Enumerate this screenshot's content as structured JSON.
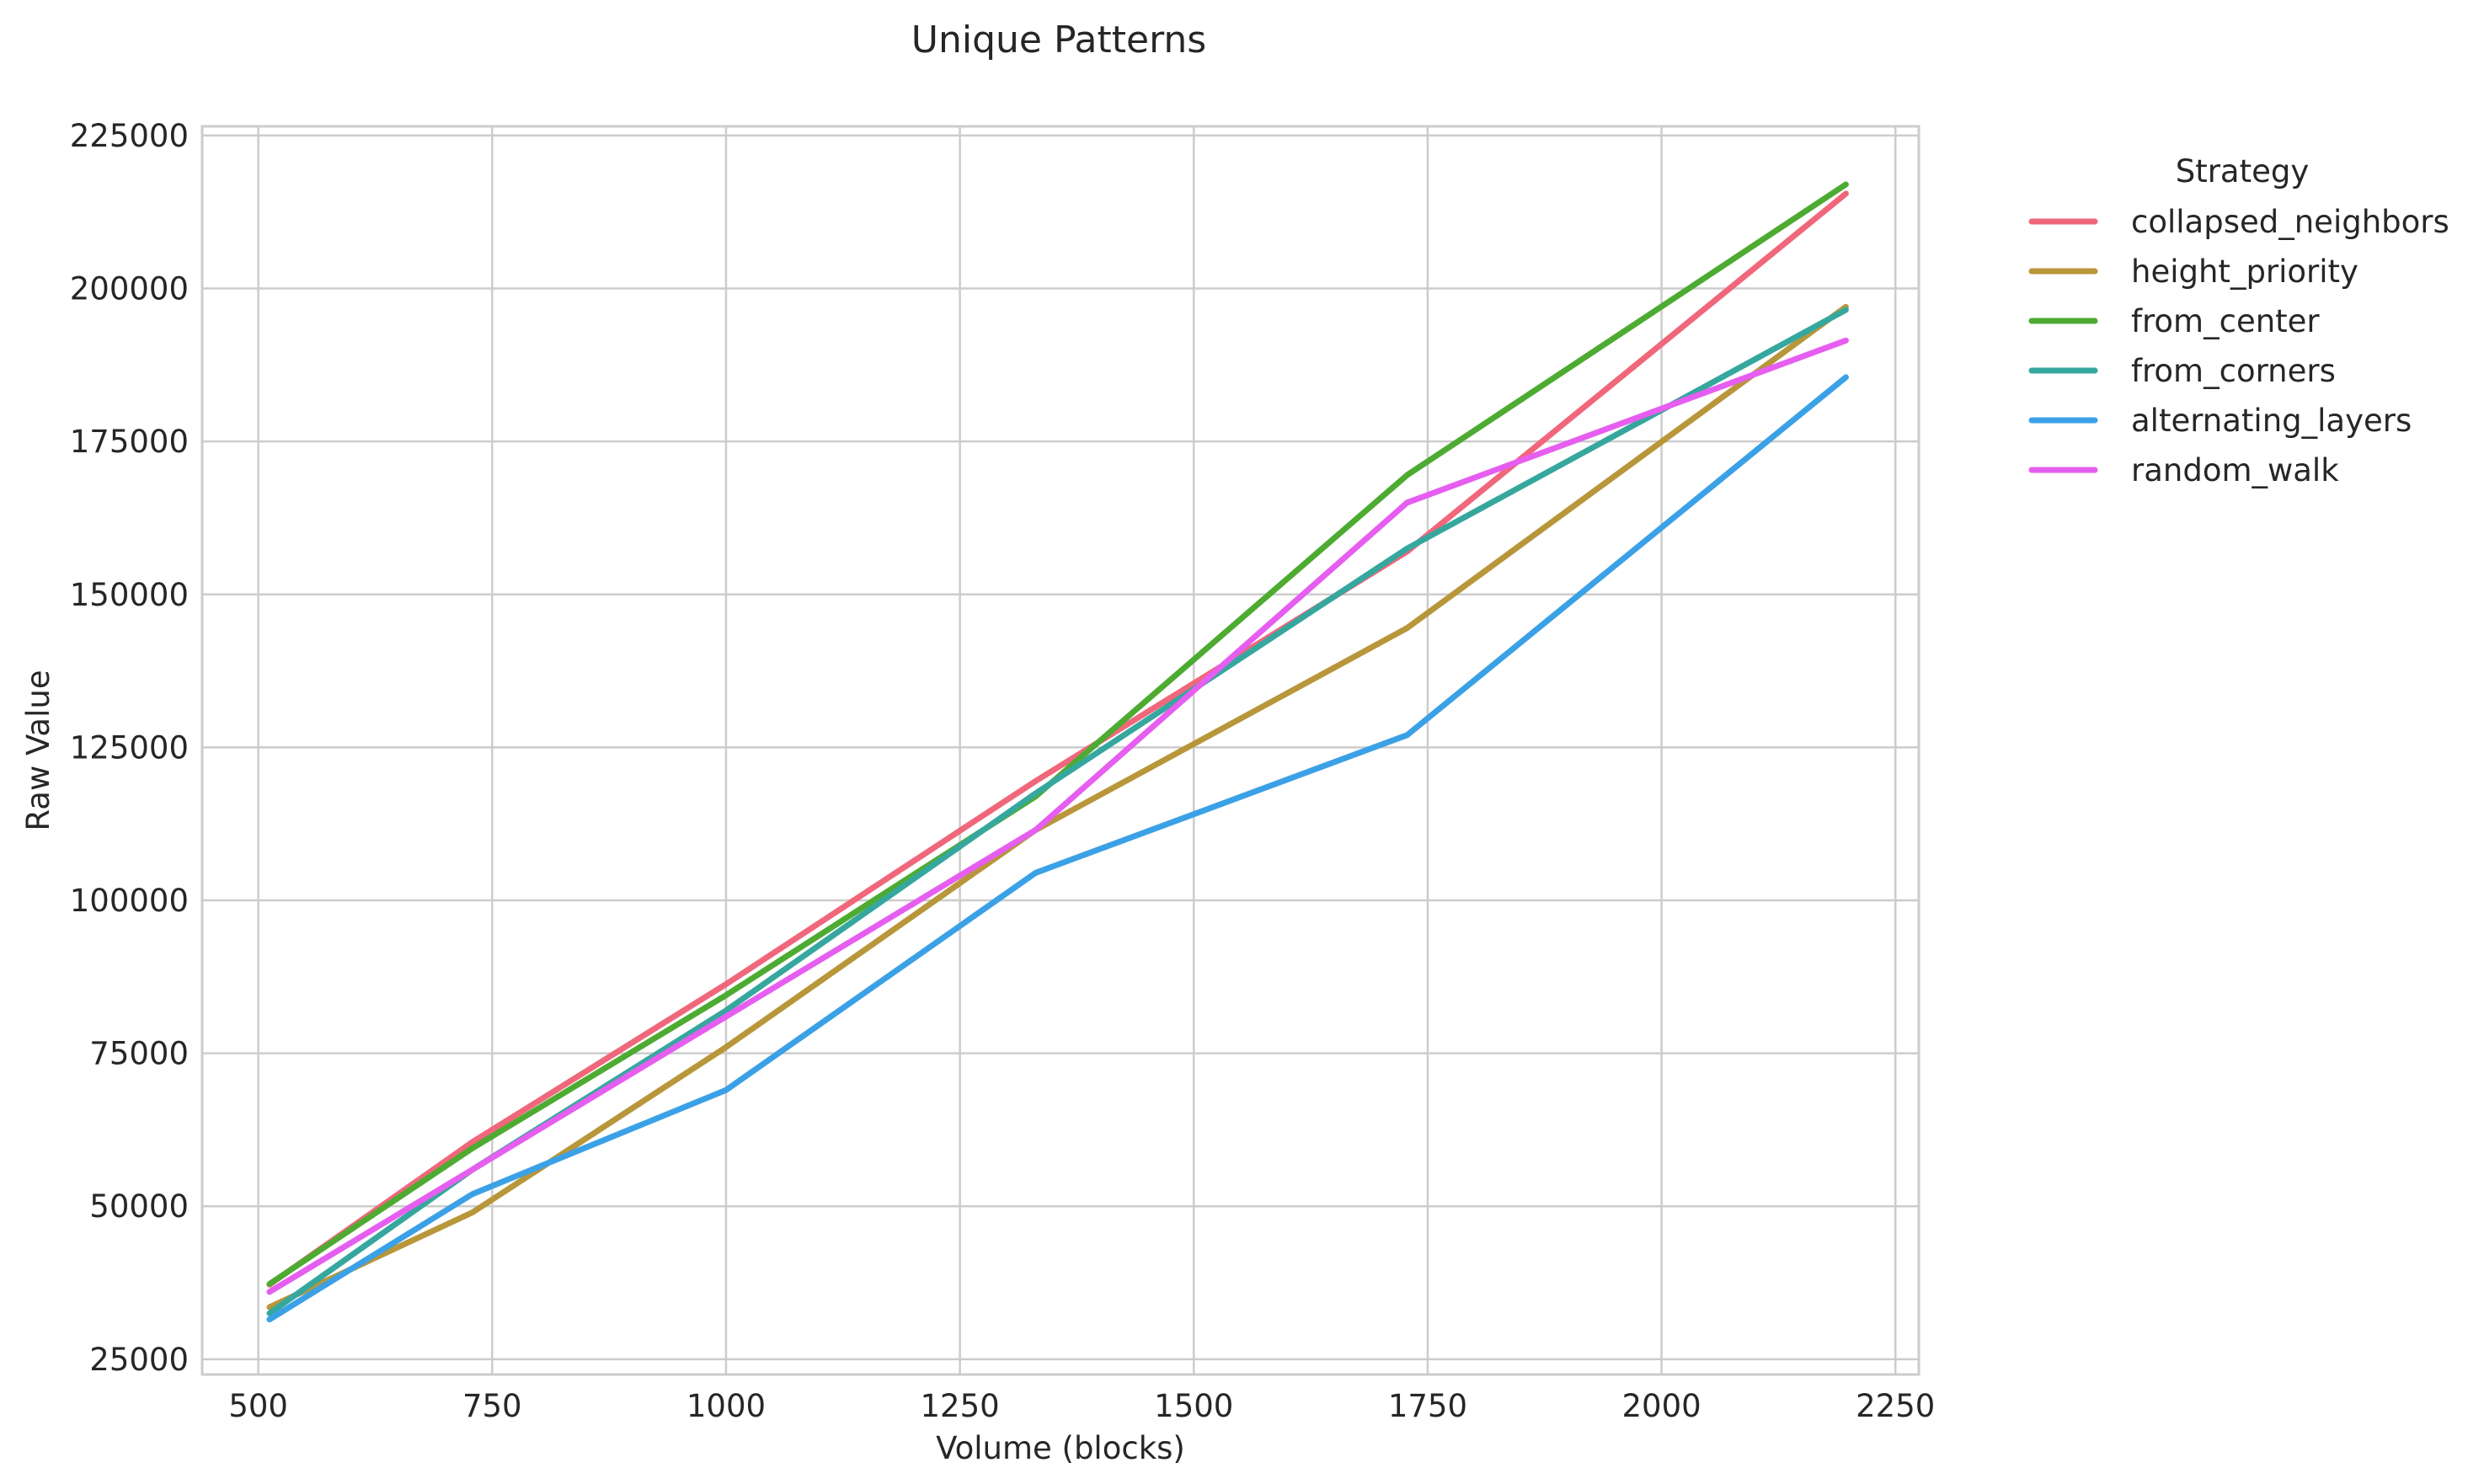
{
  "chart_data": {
    "type": "line",
    "title": "Unique Patterns",
    "xlabel": "Volume (blocks)",
    "ylabel": "Raw Value",
    "xlim": [
      440,
      2275
    ],
    "ylim": [
      22500,
      226500
    ],
    "x_ticks": [
      500,
      750,
      1000,
      1250,
      1500,
      1750,
      2000,
      2250
    ],
    "x_tick_labels": [
      "500",
      "750",
      "1000",
      "1250",
      "1500",
      "1750",
      "2000",
      "2250"
    ],
    "y_ticks": [
      25000,
      50000,
      75000,
      100000,
      125000,
      150000,
      175000,
      200000,
      225000
    ],
    "y_tick_labels": [
      "25000",
      "50000",
      "75000",
      "100000",
      "125000",
      "150000",
      "175000",
      "200000",
      "225000"
    ],
    "grid": true,
    "legend": {
      "title": "Strategy",
      "placement": "outside-right"
    },
    "x": [
      512,
      729,
      1000,
      1331,
      1728,
      2197
    ],
    "series": [
      {
        "name": "collapsed_neighbors",
        "color": "#f0677b",
        "values": [
          37200,
          60500,
          86300,
          119500,
          157000,
          215500
        ]
      },
      {
        "name": "height_priority",
        "color": "#b8963a",
        "values": [
          33500,
          49000,
          76000,
          111500,
          144500,
          197000
        ]
      },
      {
        "name": "from_center",
        "color": "#4dab32",
        "values": [
          37300,
          59500,
          84500,
          117000,
          169500,
          217000
        ]
      },
      {
        "name": "from_corners",
        "color": "#36a79e",
        "values": [
          32500,
          56000,
          82000,
          117500,
          157500,
          196500
        ]
      },
      {
        "name": "alternating_layers",
        "color": "#3ba1e6",
        "values": [
          31500,
          52000,
          69000,
          104500,
          127000,
          185500
        ]
      },
      {
        "name": "random_walk",
        "color": "#e65ef0",
        "values": [
          36000,
          56000,
          81000,
          111500,
          165000,
          191500
        ]
      }
    ]
  }
}
